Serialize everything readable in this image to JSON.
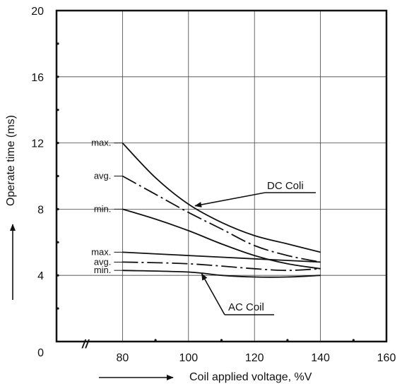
{
  "chart_data": {
    "type": "line",
    "title": "",
    "xlabel": "Coil applied voltage, %V",
    "ylabel": "Operate time (ms)",
    "xlim": [
      60,
      160
    ],
    "ylim": [
      0,
      20
    ],
    "x_ticks": [
      "80",
      "100",
      "120",
      "140",
      "160"
    ],
    "y_ticks": [
      "0",
      "4",
      "8",
      "12",
      "16",
      "20"
    ],
    "grid": true,
    "axis_break_symbol": "//",
    "series": [
      {
        "name": "DC Coli max.",
        "label": "max.",
        "style": "solid",
        "x": [
          80,
          90,
          100,
          110,
          120,
          130,
          140
        ],
        "y": [
          12.0,
          9.9,
          8.3,
          7.2,
          6.4,
          5.9,
          5.4
        ]
      },
      {
        "name": "DC Coli avg.",
        "label": "avg.",
        "style": "dashdot",
        "x": [
          80,
          90,
          100,
          110,
          120,
          130,
          140
        ],
        "y": [
          10.0,
          8.9,
          7.8,
          6.8,
          5.8,
          5.2,
          4.8
        ]
      },
      {
        "name": "DC Coli min.",
        "label": "min.",
        "style": "solid",
        "x": [
          80,
          90,
          100,
          110,
          120,
          130,
          140
        ],
        "y": [
          8.0,
          7.4,
          6.7,
          5.9,
          5.2,
          4.7,
          4.4
        ]
      },
      {
        "name": "AC Coil max.",
        "label": "max.",
        "style": "solid",
        "x": [
          80,
          100,
          120,
          140
        ],
        "y": [
          5.4,
          5.2,
          5.0,
          4.8
        ]
      },
      {
        "name": "AC Coil avg.",
        "label": "avg.",
        "style": "dashdot",
        "x": [
          80,
          100,
          120,
          130,
          140
        ],
        "y": [
          4.8,
          4.7,
          4.4,
          4.3,
          4.4
        ]
      },
      {
        "name": "AC Coil min.",
        "label": "min.",
        "style": "solid",
        "x": [
          80,
          100,
          110,
          120,
          130,
          140
        ],
        "y": [
          4.3,
          4.2,
          4.0,
          3.9,
          3.9,
          4.0
        ]
      }
    ],
    "annotations": [
      {
        "text": "DC Coli",
        "target": "DC Coli"
      },
      {
        "text": "AC Coil",
        "target": "AC Coil"
      }
    ]
  }
}
